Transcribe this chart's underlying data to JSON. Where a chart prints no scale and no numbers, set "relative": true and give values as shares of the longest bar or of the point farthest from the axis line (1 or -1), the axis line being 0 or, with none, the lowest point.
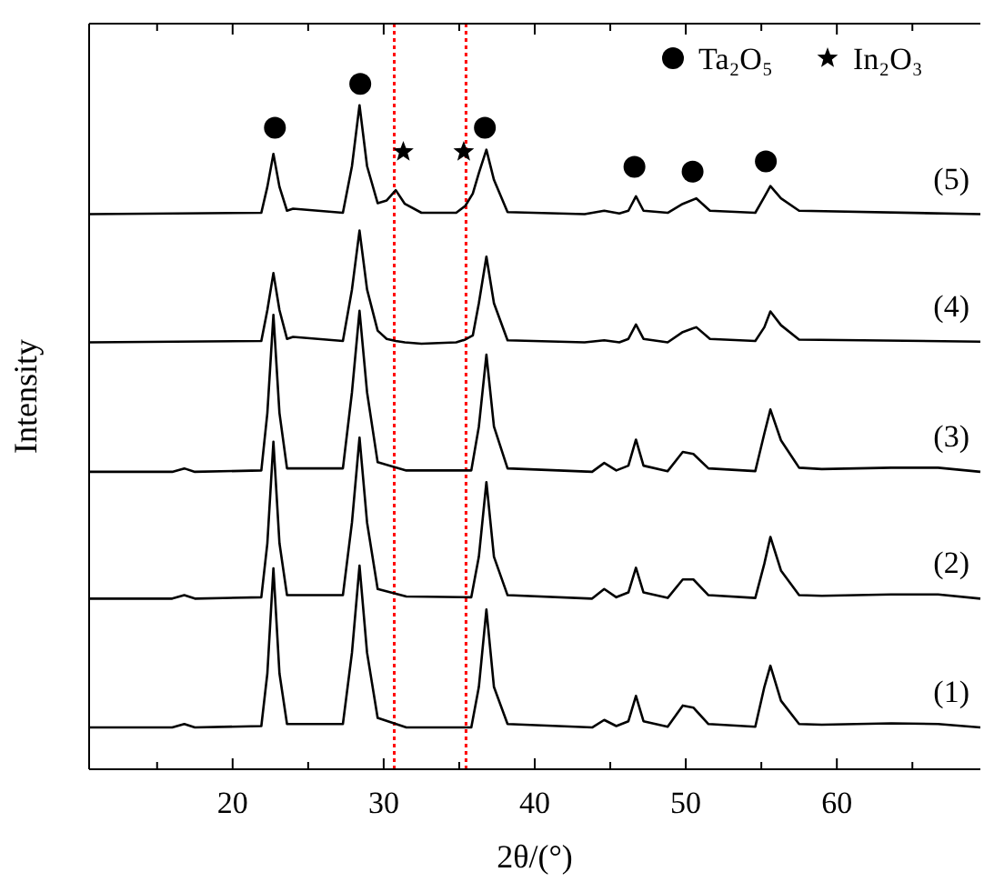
{
  "chart_data": {
    "type": "line",
    "relative": true,
    "xlabel": "2θ/(°)",
    "ylabel": "Intensity",
    "xlim": [
      10.5,
      69.5
    ],
    "xticks": [
      {
        "value": 15,
        "label": null
      },
      20,
      {
        "value": 25,
        "label": null
      },
      30,
      {
        "value": 35,
        "label": null
      },
      40,
      {
        "value": 45,
        "label": null
      },
      50,
      {
        "value": 55,
        "label": null
      },
      60,
      {
        "value": 65,
        "label": null
      }
    ],
    "legend": "top right",
    "tick_labels": "x",
    "ref_lines": [
      {
        "axis": "x",
        "value": 30.7,
        "color": "#ff0000",
        "line_style": "dotted"
      },
      {
        "axis": "x",
        "value": 35.45,
        "color": "#ff0000",
        "line_style": "dotted"
      }
    ],
    "series": [
      {
        "name": "(1)",
        "color": "#000000",
        "x": [
          10.5,
          16,
          16.8,
          17.5,
          21.9,
          22.3,
          22.7,
          23.1,
          23.6,
          27.3,
          27.9,
          28.4,
          28.9,
          29.6,
          31.5,
          35.8,
          36.3,
          36.8,
          37.3,
          38.2,
          43.8,
          44.6,
          45.4,
          46.2,
          46.7,
          47.2,
          48.8,
          49.8,
          50.5,
          51.5,
          54.6,
          55.2,
          55.6,
          56.3,
          57.5,
          59,
          63.6,
          66.7,
          69.5
        ],
        "values": [
          0.061,
          0.061,
          0.066,
          0.061,
          0.063,
          0.14,
          0.293,
          0.14,
          0.066,
          0.066,
          0.17,
          0.297,
          0.17,
          0.075,
          0.061,
          0.061,
          0.12,
          0.233,
          0.12,
          0.066,
          0.061,
          0.072,
          0.063,
          0.07,
          0.107,
          0.07,
          0.062,
          0.093,
          0.09,
          0.066,
          0.062,
          0.12,
          0.151,
          0.1,
          0.066,
          0.065,
          0.067,
          0.066,
          0.061
        ]
      },
      {
        "name": "(2)",
        "color": "#000000",
        "x": [
          10.5,
          16,
          16.8,
          17.5,
          21.9,
          22.3,
          22.7,
          23.1,
          23.6,
          27.3,
          27.9,
          28.4,
          28.9,
          29.6,
          31.5,
          35.8,
          36.3,
          36.8,
          37.3,
          38.2,
          43.8,
          44.6,
          45.4,
          46.2,
          46.7,
          47.2,
          48.8,
          49.8,
          50.5,
          51.5,
          54.6,
          55.2,
          55.6,
          56.3,
          57.5,
          59,
          63.6,
          66.7,
          69.5
        ],
        "values": [
          0.249,
          0.249,
          0.254,
          0.249,
          0.251,
          0.33,
          0.478,
          0.33,
          0.254,
          0.254,
          0.36,
          0.484,
          0.36,
          0.263,
          0.252,
          0.251,
          0.31,
          0.419,
          0.31,
          0.254,
          0.249,
          0.263,
          0.251,
          0.258,
          0.294,
          0.258,
          0.25,
          0.277,
          0.277,
          0.254,
          0.25,
          0.3,
          0.339,
          0.29,
          0.254,
          0.253,
          0.255,
          0.255,
          0.249
        ]
      },
      {
        "name": "(3)",
        "color": "#000000",
        "x": [
          10.5,
          16,
          16.8,
          17.5,
          21.9,
          22.3,
          22.7,
          23.1,
          23.6,
          27.3,
          27.9,
          28.4,
          28.9,
          29.6,
          31.5,
          35.8,
          36.3,
          36.8,
          37.3,
          38.2,
          43.8,
          44.6,
          45.4,
          46.2,
          46.7,
          47.2,
          48.8,
          49.8,
          50.5,
          51.5,
          54.6,
          55.2,
          55.6,
          56.3,
          57.5,
          59,
          63.6,
          66.7,
          69.5
        ],
        "values": [
          0.434,
          0.434,
          0.439,
          0.434,
          0.436,
          0.52,
          0.663,
          0.52,
          0.439,
          0.439,
          0.55,
          0.669,
          0.55,
          0.448,
          0.436,
          0.436,
          0.5,
          0.605,
          0.5,
          0.439,
          0.434,
          0.447,
          0.436,
          0.443,
          0.481,
          0.443,
          0.435,
          0.463,
          0.46,
          0.439,
          0.435,
          0.49,
          0.525,
          0.48,
          0.44,
          0.438,
          0.44,
          0.44,
          0.434
        ]
      },
      {
        "name": "(4)",
        "color": "#000000",
        "x": [
          10.5,
          21.9,
          22.3,
          22.7,
          23.1,
          23.6,
          24,
          27.3,
          27.9,
          28.4,
          28.9,
          29.6,
          30.2,
          30.8,
          31.4,
          32.5,
          34.8,
          35.4,
          35.9,
          36.3,
          36.8,
          37.3,
          38.2,
          43.3,
          44.6,
          45.6,
          46.2,
          46.7,
          47.2,
          48.8,
          49.8,
          50.7,
          51.6,
          54.6,
          55.2,
          55.6,
          56.3,
          57.5,
          69.5
        ],
        "values": [
          0.623,
          0.625,
          0.67,
          0.724,
          0.67,
          0.628,
          0.631,
          0.625,
          0.7,
          0.786,
          0.7,
          0.64,
          0.628,
          0.625,
          0.623,
          0.621,
          0.623,
          0.627,
          0.633,
          0.68,
          0.748,
          0.68,
          0.626,
          0.623,
          0.626,
          0.623,
          0.628,
          0.649,
          0.628,
          0.623,
          0.638,
          0.645,
          0.628,
          0.625,
          0.645,
          0.668,
          0.648,
          0.627,
          0.624
        ]
      },
      {
        "name": "(5)",
        "color": "#000000",
        "x": [
          10.5,
          21.9,
          22.3,
          22.7,
          23.1,
          23.6,
          24,
          27.3,
          27.9,
          28.4,
          28.9,
          29.6,
          30.2,
          30.8,
          31.4,
          32.5,
          34.8,
          35.4,
          35.9,
          36.3,
          36.8,
          37.3,
          38.2,
          43.3,
          44.6,
          45.6,
          46.2,
          46.7,
          47.2,
          48.8,
          49.8,
          50.7,
          51.6,
          54.6,
          55.2,
          55.6,
          56.3,
          57.5,
          69.5
        ],
        "values": [
          0.81,
          0.812,
          0.85,
          0.898,
          0.85,
          0.815,
          0.818,
          0.812,
          0.88,
          0.969,
          0.88,
          0.826,
          0.83,
          0.845,
          0.825,
          0.812,
          0.812,
          0.822,
          0.84,
          0.87,
          0.904,
          0.86,
          0.813,
          0.81,
          0.815,
          0.811,
          0.815,
          0.836,
          0.815,
          0.812,
          0.825,
          0.833,
          0.815,
          0.812,
          0.835,
          0.851,
          0.833,
          0.815,
          0.81
        ]
      },
      {
        "name": "Ta₂O₅",
        "type": "scatter",
        "marker": "circle",
        "color": "#000000",
        "x": [
          22.8,
          28.45,
          36.7,
          46.6,
          50.45,
          55.3
        ],
        "values": [
          0.936,
          1.0,
          0.936,
          0.879,
          0.872,
          0.887
        ]
      },
      {
        "name": "In₂O₃",
        "type": "scatter",
        "marker": "star",
        "color": "#000000",
        "x": [
          31.3,
          35.3
        ],
        "values": [
          0.901,
          0.901
        ]
      }
    ]
  }
}
